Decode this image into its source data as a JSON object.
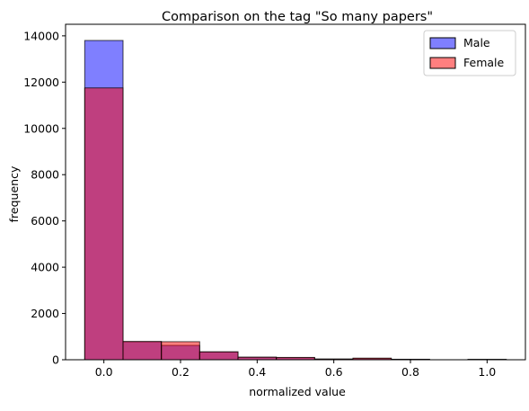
{
  "chart_data": {
    "type": "bar",
    "title": "Comparison on the tag \"So many papers\"",
    "xlabel": "normalized value",
    "ylabel": "frequency",
    "xlim": [
      -0.1,
      1.1
    ],
    "ylim": [
      0,
      14500
    ],
    "xticks": [
      {
        "value": 0.0,
        "label": "0.0"
      },
      {
        "value": 0.2,
        "label": "0.2"
      },
      {
        "value": 0.4,
        "label": "0.4"
      },
      {
        "value": 0.6,
        "label": "0.6"
      },
      {
        "value": 0.8,
        "label": "0.8"
      },
      {
        "value": 1.0,
        "label": "1.0"
      }
    ],
    "yticks": [
      {
        "value": 0,
        "label": "0"
      },
      {
        "value": 2000,
        "label": "2000"
      },
      {
        "value": 4000,
        "label": "4000"
      },
      {
        "value": 6000,
        "label": "6000"
      },
      {
        "value": 8000,
        "label": "8000"
      },
      {
        "value": 10000,
        "label": "10000"
      },
      {
        "value": 12000,
        "label": "12000"
      },
      {
        "value": 14000,
        "label": "14000"
      }
    ],
    "bin_edges": [
      -0.05,
      0.05,
      0.15,
      0.25,
      0.35,
      0.45,
      0.55,
      0.65,
      0.75,
      0.85,
      0.95,
      1.05
    ],
    "series": [
      {
        "name": "Male",
        "color": "#0000ff",
        "alpha": 0.5,
        "values": [
          13800,
          780,
          620,
          340,
          110,
          90,
          30,
          50,
          20,
          0,
          20
        ]
      },
      {
        "name": "Female",
        "color": "#ff0000",
        "alpha": 0.5,
        "values": [
          11750,
          790,
          780,
          340,
          110,
          100,
          30,
          70,
          20,
          0,
          10
        ]
      }
    ],
    "legend_position": "top-right",
    "grid": false
  }
}
